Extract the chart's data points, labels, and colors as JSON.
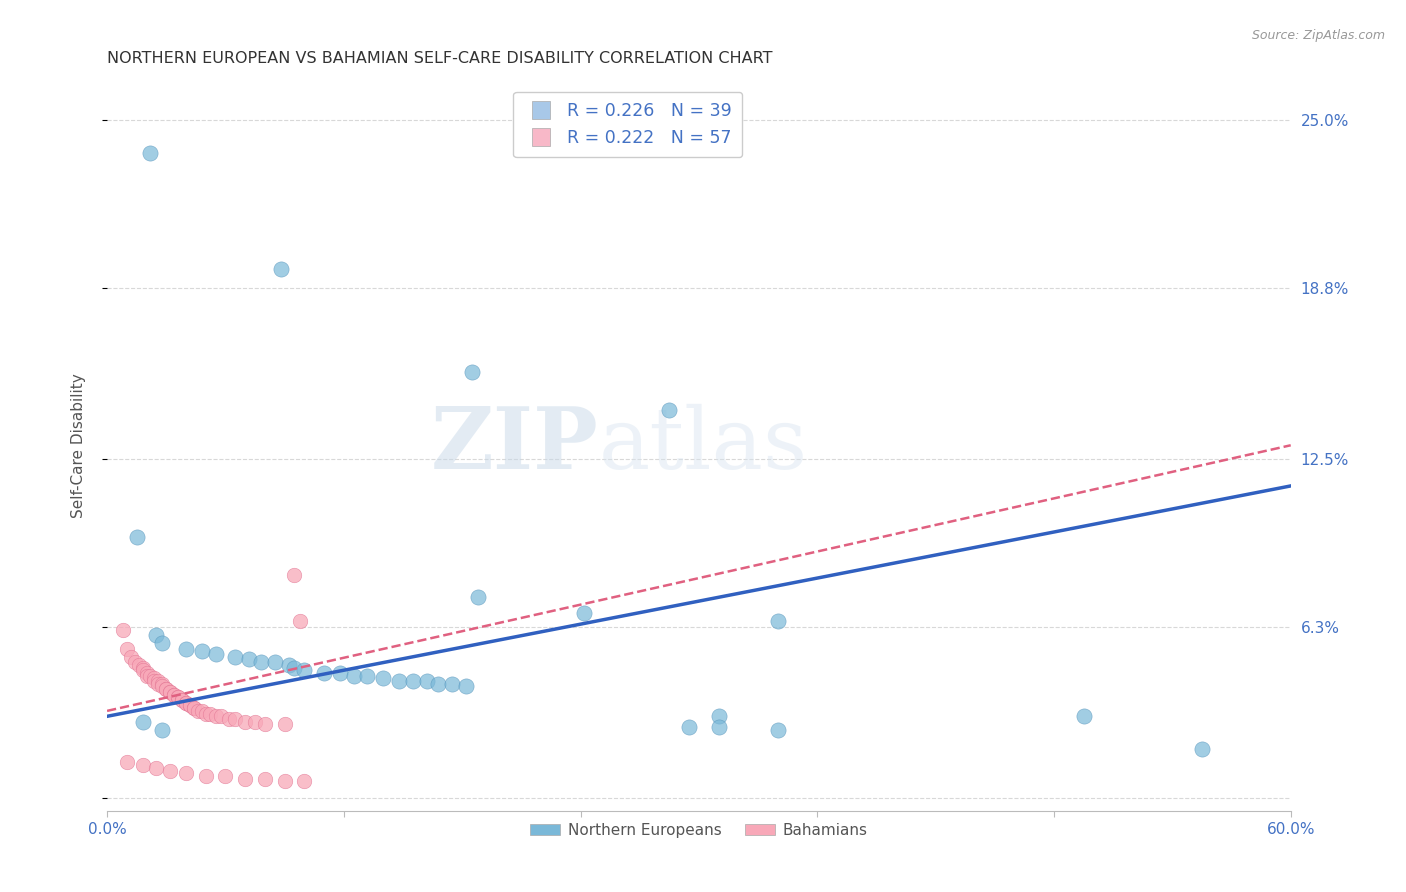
{
  "title": "NORTHERN EUROPEAN VS BAHAMIAN SELF-CARE DISABILITY CORRELATION CHART",
  "source": "Source: ZipAtlas.com",
  "ylabel_label": "Self-Care Disability",
  "xlim": [
    0.0,
    0.6
  ],
  "ylim": [
    -0.005,
    0.265
  ],
  "yticks": [
    0.0,
    0.063,
    0.125,
    0.188,
    0.25
  ],
  "ytick_labels": [
    "",
    "6.3%",
    "12.5%",
    "18.8%",
    "25.0%"
  ],
  "xticks": [
    0.0,
    0.12,
    0.24,
    0.36,
    0.48,
    0.6
  ],
  "xtick_labels": [
    "0.0%",
    "",
    "",
    "",
    "",
    "60.0%"
  ],
  "watermark_zip": "ZIP",
  "watermark_atlas": "atlas",
  "legend_entries": [
    {
      "label": "R = 0.226   N = 39",
      "color": "#a8c8e8"
    },
    {
      "label": "R = 0.222   N = 57",
      "color": "#f8b8c8"
    }
  ],
  "series_ne": {
    "name": "Northern Europeans",
    "color": "#7ab8d8",
    "edge_color": "#5090b8",
    "points": [
      [
        0.022,
        0.238
      ],
      [
        0.088,
        0.195
      ],
      [
        0.185,
        0.157
      ],
      [
        0.285,
        0.143
      ],
      [
        0.188,
        0.074
      ],
      [
        0.242,
        0.068
      ],
      [
        0.34,
        0.065
      ],
      [
        0.025,
        0.06
      ],
      [
        0.028,
        0.057
      ],
      [
        0.04,
        0.055
      ],
      [
        0.048,
        0.054
      ],
      [
        0.055,
        0.053
      ],
      [
        0.065,
        0.052
      ],
      [
        0.072,
        0.051
      ],
      [
        0.078,
        0.05
      ],
      [
        0.085,
        0.05
      ],
      [
        0.092,
        0.049
      ],
      [
        0.095,
        0.048
      ],
      [
        0.1,
        0.047
      ],
      [
        0.11,
        0.046
      ],
      [
        0.118,
        0.046
      ],
      [
        0.125,
        0.045
      ],
      [
        0.132,
        0.045
      ],
      [
        0.14,
        0.044
      ],
      [
        0.148,
        0.043
      ],
      [
        0.155,
        0.043
      ],
      [
        0.162,
        0.043
      ],
      [
        0.168,
        0.042
      ],
      [
        0.175,
        0.042
      ],
      [
        0.182,
        0.041
      ],
      [
        0.31,
        0.03
      ],
      [
        0.015,
        0.096
      ],
      [
        0.018,
        0.028
      ],
      [
        0.028,
        0.025
      ],
      [
        0.555,
        0.018
      ],
      [
        0.295,
        0.026
      ],
      [
        0.31,
        0.026
      ],
      [
        0.34,
        0.025
      ],
      [
        0.495,
        0.03
      ]
    ]
  },
  "series_bah": {
    "name": "Bahamians",
    "color": "#f8a8b8",
    "edge_color": "#e07090",
    "points": [
      [
        0.008,
        0.062
      ],
      [
        0.01,
        0.055
      ],
      [
        0.012,
        0.052
      ],
      [
        0.014,
        0.05
      ],
      [
        0.016,
        0.049
      ],
      [
        0.018,
        0.048
      ],
      [
        0.018,
        0.047
      ],
      [
        0.02,
        0.046
      ],
      [
        0.02,
        0.045
      ],
      [
        0.022,
        0.045
      ],
      [
        0.024,
        0.044
      ],
      [
        0.024,
        0.043
      ],
      [
        0.026,
        0.043
      ],
      [
        0.026,
        0.042
      ],
      [
        0.028,
        0.042
      ],
      [
        0.028,
        0.041
      ],
      [
        0.03,
        0.04
      ],
      [
        0.03,
        0.04
      ],
      [
        0.032,
        0.039
      ],
      [
        0.032,
        0.039
      ],
      [
        0.034,
        0.038
      ],
      [
        0.034,
        0.038
      ],
      [
        0.036,
        0.037
      ],
      [
        0.036,
        0.037
      ],
      [
        0.038,
        0.036
      ],
      [
        0.038,
        0.036
      ],
      [
        0.04,
        0.035
      ],
      [
        0.04,
        0.035
      ],
      [
        0.042,
        0.034
      ],
      [
        0.042,
        0.034
      ],
      [
        0.044,
        0.033
      ],
      [
        0.044,
        0.033
      ],
      [
        0.046,
        0.032
      ],
      [
        0.048,
        0.032
      ],
      [
        0.05,
        0.031
      ],
      [
        0.052,
        0.031
      ],
      [
        0.055,
        0.03
      ],
      [
        0.058,
        0.03
      ],
      [
        0.062,
        0.029
      ],
      [
        0.065,
        0.029
      ],
      [
        0.07,
        0.028
      ],
      [
        0.075,
        0.028
      ],
      [
        0.08,
        0.027
      ],
      [
        0.09,
        0.027
      ],
      [
        0.095,
        0.082
      ],
      [
        0.098,
        0.065
      ],
      [
        0.01,
        0.013
      ],
      [
        0.018,
        0.012
      ],
      [
        0.025,
        0.011
      ],
      [
        0.032,
        0.01
      ],
      [
        0.04,
        0.009
      ],
      [
        0.05,
        0.008
      ],
      [
        0.06,
        0.008
      ],
      [
        0.07,
        0.007
      ],
      [
        0.08,
        0.007
      ],
      [
        0.09,
        0.006
      ],
      [
        0.1,
        0.006
      ]
    ]
  },
  "trendline_ne": {
    "color": "#3060c0",
    "x_start": 0.0,
    "x_end": 0.6,
    "y_start": 0.03,
    "y_end": 0.115,
    "linewidth": 2.5,
    "linestyle": "-"
  },
  "trendline_bah": {
    "color": "#e06080",
    "x_start": 0.0,
    "x_end": 0.6,
    "y_start": 0.032,
    "y_end": 0.13,
    "linewidth": 1.8,
    "linestyle": "--"
  },
  "background_color": "#ffffff",
  "grid_color": "#d8d8d8",
  "title_color": "#333333",
  "axis_color": "#4472c4",
  "tick_color": "#4472c4"
}
